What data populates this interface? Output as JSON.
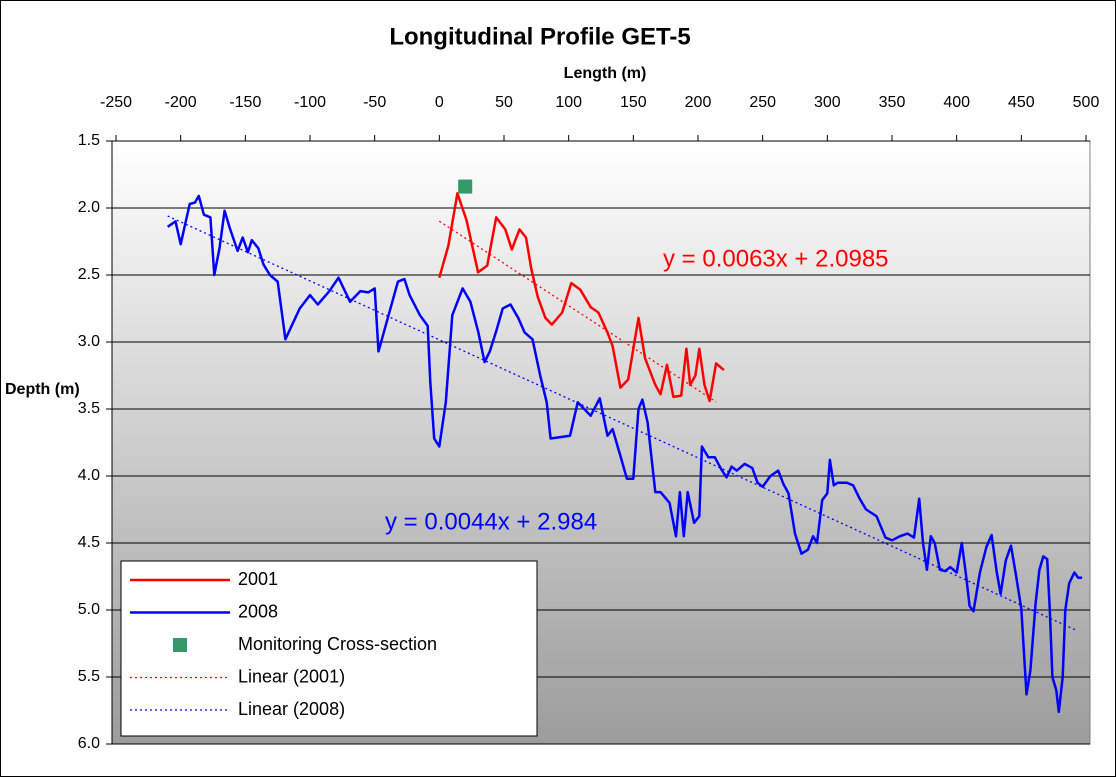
{
  "chart_data": {
    "type": "line",
    "title": "Longitudinal Profile GET-5",
    "x_label": "Length (m)",
    "y_label": "Depth (m)",
    "xlim": [
      -250,
      500
    ],
    "xticks": [
      -250,
      -200,
      -150,
      -100,
      -50,
      0,
      50,
      100,
      150,
      200,
      250,
      300,
      350,
      400,
      450,
      500
    ],
    "x_axis_position": "top",
    "ylim": [
      1.5,
      6.0
    ],
    "y_reversed": true,
    "yticks": [
      1.5,
      {
        "value": 2,
        "label": "2.0"
      },
      2.5,
      {
        "value": 3,
        "label": "3.0"
      },
      3.5,
      {
        "value": 4,
        "label": "4.0"
      },
      4.5,
      {
        "value": 5,
        "label": "5.0"
      },
      5.5,
      {
        "value": 6,
        "label": "6.0"
      }
    ],
    "grid": true,
    "legend": "bottom-left",
    "series": [
      {
        "name": "2001",
        "color": "#ff0000",
        "style": "line",
        "x": [
          0,
          7,
          14,
          21,
          30,
          37,
          44,
          51,
          56,
          62,
          67,
          71,
          76,
          82,
          87,
          95,
          102,
          109,
          117,
          123,
          130,
          134,
          140,
          146,
          154,
          159,
          167,
          171,
          176,
          181,
          187,
          191,
          194,
          198,
          201,
          205,
          209,
          214,
          220
        ],
        "values": [
          2.52,
          2.28,
          1.89,
          2.09,
          2.48,
          2.43,
          2.07,
          2.16,
          2.31,
          2.16,
          2.22,
          2.45,
          2.66,
          2.82,
          2.87,
          2.78,
          2.56,
          2.61,
          2.74,
          2.78,
          2.93,
          3.03,
          3.34,
          3.28,
          2.82,
          3.12,
          3.32,
          3.39,
          3.17,
          3.41,
          3.4,
          3.05,
          3.32,
          3.25,
          3.05,
          3.32,
          3.44,
          3.16,
          3.21
        ]
      },
      {
        "name": "2008",
        "color": "#0000ff",
        "style": "line",
        "x": [
          -210,
          -204,
          -200,
          -196,
          -193,
          -189,
          -186,
          -182,
          -177,
          -174,
          -170,
          -166,
          -162,
          -156,
          -152,
          -148,
          -145,
          -140,
          -136,
          -131,
          -125,
          -119,
          -108,
          -100,
          -94,
          -85,
          -78,
          -69,
          -61,
          -55,
          -50,
          -47,
          -32,
          -27,
          -23,
          -15,
          -9,
          -7,
          -4,
          0,
          5,
          10,
          18,
          24,
          30,
          35,
          39,
          44,
          49,
          55,
          61,
          66,
          72,
          78,
          83,
          86,
          101,
          107,
          117,
          124,
          130,
          134,
          140,
          145,
          150,
          154,
          157,
          161,
          167,
          171,
          178,
          183,
          186,
          189,
          192,
          197,
          201,
          203,
          208,
          213,
          218,
          222,
          226,
          230,
          236,
          242,
          246,
          250,
          256,
          262,
          266,
          270,
          275,
          280,
          285,
          289,
          292,
          296,
          300,
          302,
          305,
          308,
          315,
          320,
          325,
          330,
          338,
          345,
          350,
          356,
          362,
          367,
          371,
          374,
          377,
          380,
          383,
          387,
          391,
          395,
          400,
          404,
          407,
          410,
          413,
          418,
          423,
          427,
          431,
          434,
          438,
          442,
          446,
          450,
          454,
          457,
          461,
          464,
          467,
          470,
          472,
          474,
          477,
          479,
          482,
          484,
          487,
          491,
          494,
          497
        ],
        "values": [
          2.14,
          2.1,
          2.27,
          2.1,
          1.97,
          1.96,
          1.91,
          2.05,
          2.07,
          2.5,
          2.3,
          2.02,
          2.15,
          2.32,
          2.22,
          2.33,
          2.24,
          2.3,
          2.42,
          2.5,
          2.55,
          2.98,
          2.75,
          2.65,
          2.72,
          2.62,
          2.52,
          2.7,
          2.62,
          2.63,
          2.6,
          3.07,
          2.55,
          2.53,
          2.65,
          2.8,
          2.88,
          3.3,
          3.72,
          3.78,
          3.45,
          2.8,
          2.6,
          2.7,
          2.92,
          3.15,
          3.07,
          2.92,
          2.75,
          2.72,
          2.82,
          2.93,
          2.98,
          3.25,
          3.45,
          3.72,
          3.7,
          3.45,
          3.55,
          3.42,
          3.7,
          3.65,
          3.85,
          4.02,
          4.02,
          3.5,
          3.43,
          3.6,
          4.12,
          4.12,
          4.2,
          4.45,
          4.12,
          4.45,
          4.12,
          4.35,
          4.3,
          3.78,
          3.86,
          3.86,
          3.95,
          4.01,
          3.93,
          3.96,
          3.91,
          3.94,
          4.05,
          4.08,
          4.0,
          3.96,
          4.06,
          4.13,
          4.43,
          4.58,
          4.55,
          4.45,
          4.5,
          4.18,
          4.13,
          3.88,
          4.07,
          4.05,
          4.05,
          4.07,
          4.17,
          4.25,
          4.3,
          4.46,
          4.48,
          4.45,
          4.43,
          4.46,
          4.17,
          4.5,
          4.7,
          4.45,
          4.5,
          4.7,
          4.71,
          4.68,
          4.72,
          4.5,
          4.72,
          4.97,
          5.01,
          4.72,
          4.53,
          4.44,
          4.72,
          4.88,
          4.63,
          4.52,
          4.75,
          4.99,
          5.63,
          5.45,
          4.95,
          4.7,
          4.6,
          4.62,
          5.0,
          5.5,
          5.6,
          5.76,
          5.5,
          5.0,
          4.8,
          4.72,
          4.76,
          4.76
        ]
      },
      {
        "name": "Monitoring Cross-section",
        "color": "#339966",
        "style": "marker",
        "x": [
          20
        ],
        "values": [
          1.84
        ]
      },
      {
        "name": "Linear (2001)",
        "color": "#ff0000",
        "style": "dotted",
        "x": [
          0,
          214
        ],
        "values": [
          2.0985,
          3.447
        ]
      },
      {
        "name": "Linear (2008)",
        "color": "#0000ff",
        "style": "dotted",
        "x": [
          -210,
          492
        ],
        "values": [
          2.06,
          5.149
        ]
      }
    ],
    "annotations": [
      {
        "text": "y = 0.0063x + 2.0985",
        "color": "#ff0000"
      },
      {
        "text": "y = 0.0044x + 2.984",
        "color": "#0000ff"
      }
    ]
  }
}
